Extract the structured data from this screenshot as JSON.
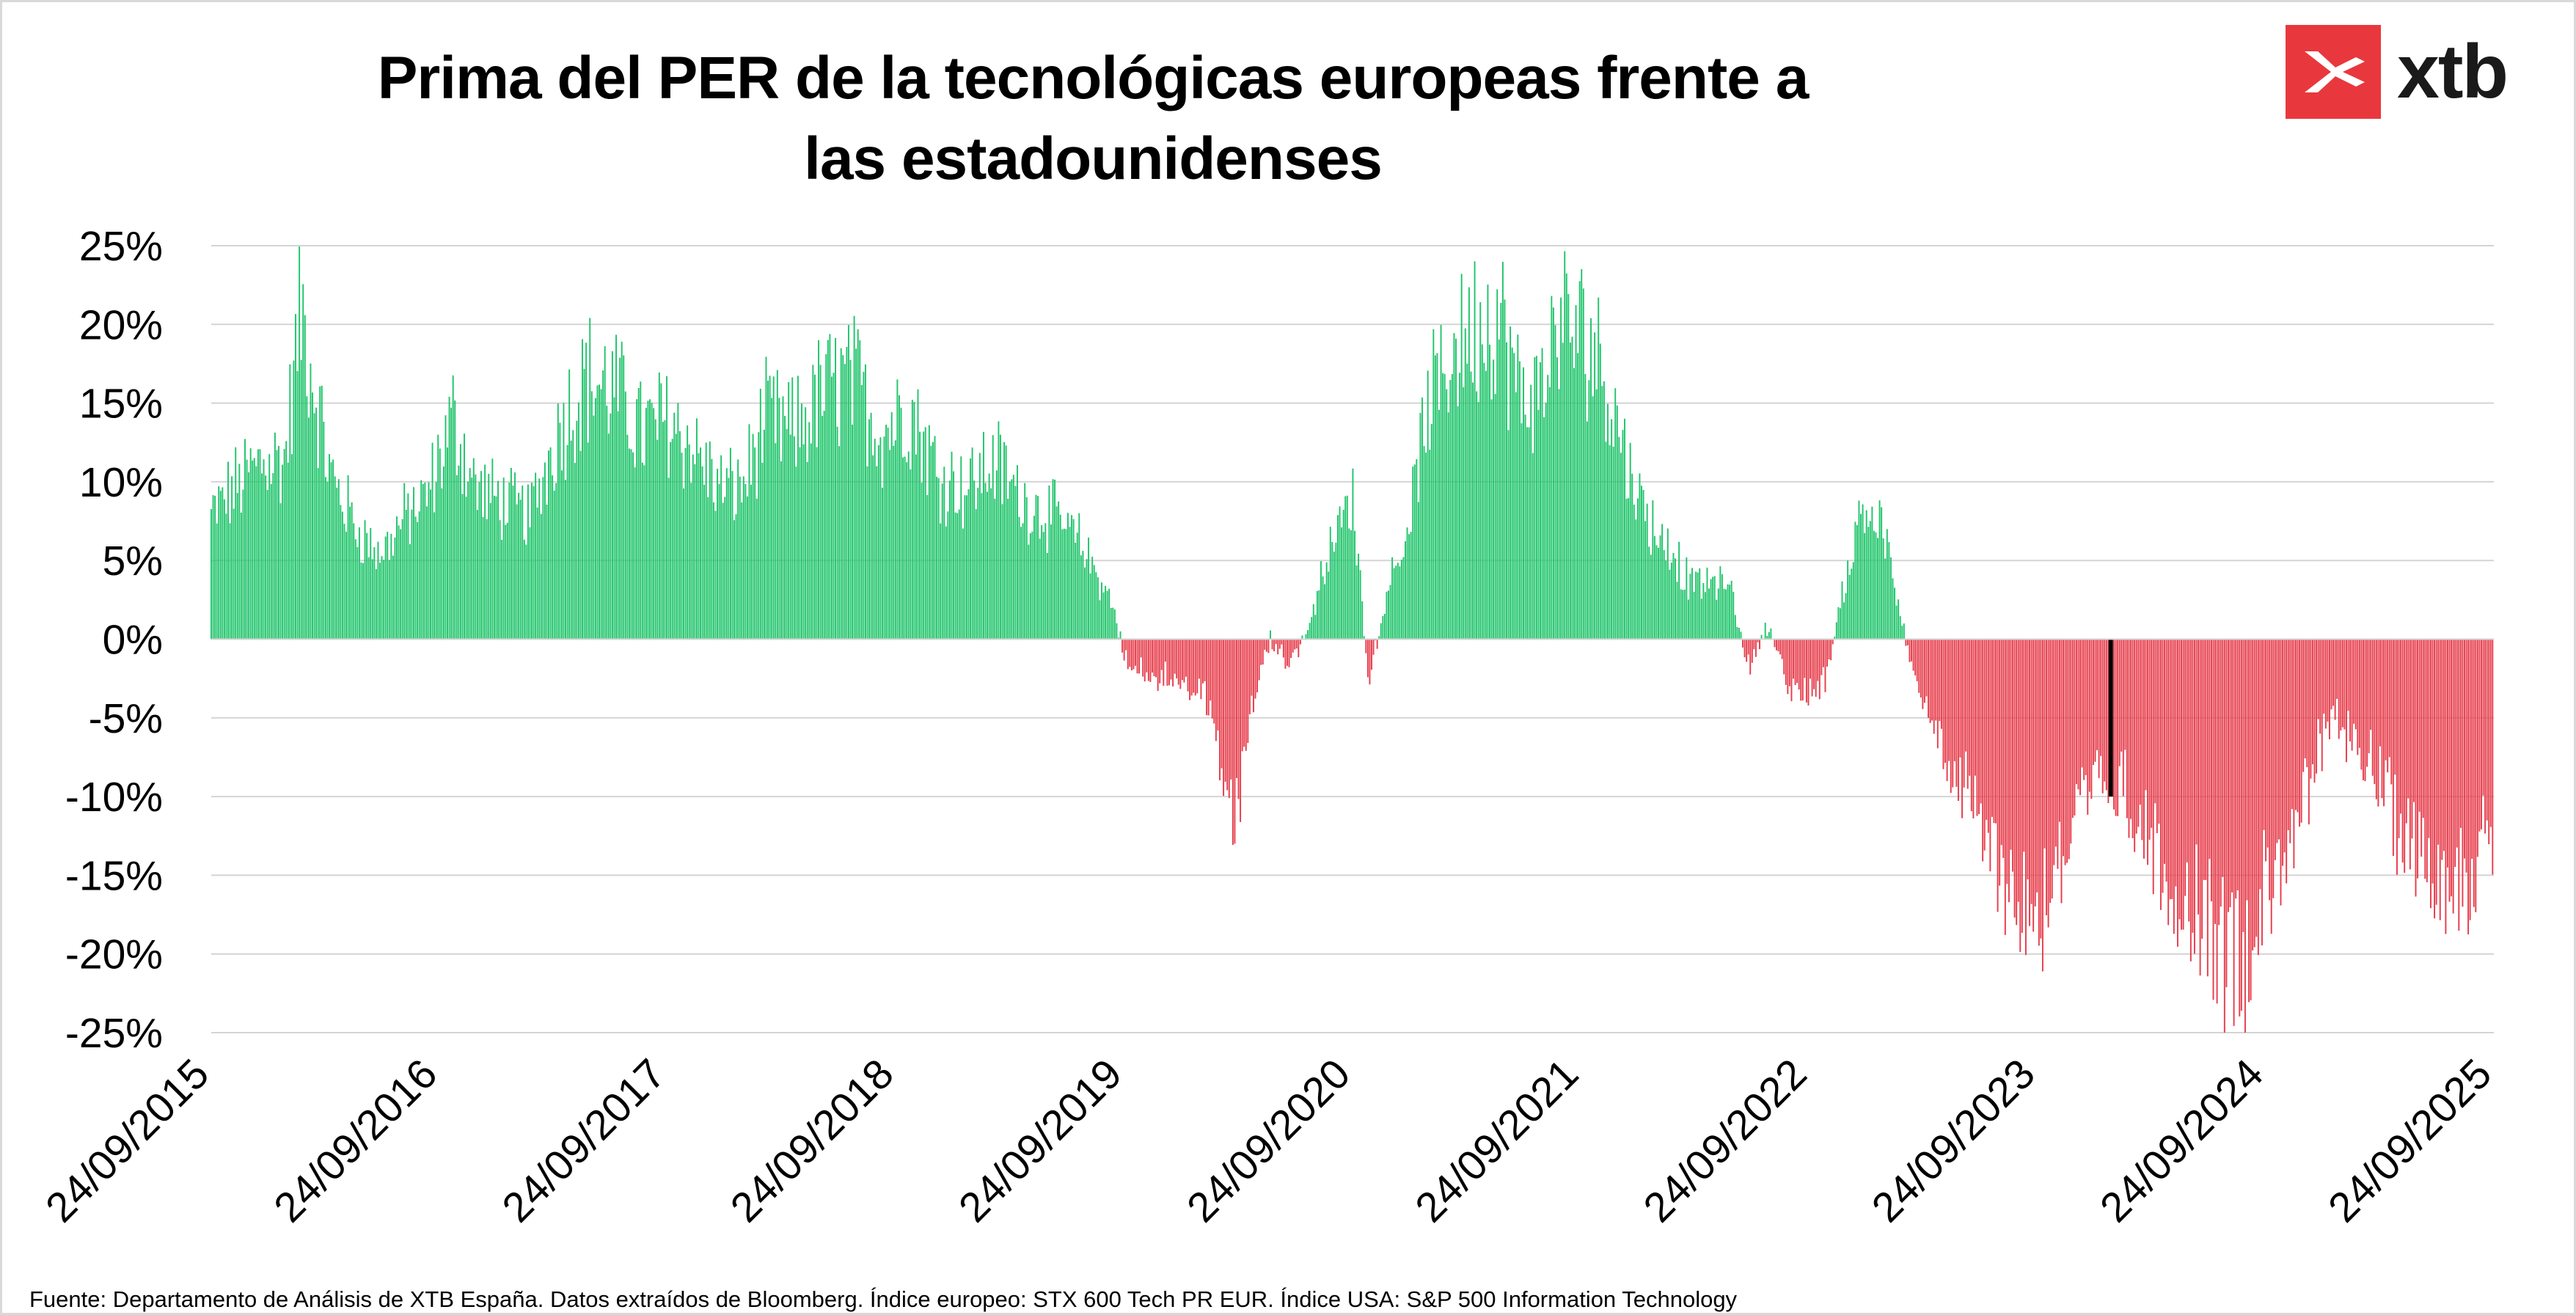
{
  "logo": {
    "text": "xtb",
    "icon": "xtb-x-icon",
    "color": "#e8383d"
  },
  "source_note": "Fuente: Departamento de Análisis de XTB España. Datos extraídos de Bloomberg. Índice europeo: STX 600 Tech PR EUR. Índice USA: S&P 500 Information Technology",
  "chart_data": {
    "type": "bar",
    "title": "Prima del PER de la tecnológicas europeas frente a las estadounidenses",
    "xlabel": "",
    "ylabel": "",
    "ylim": [
      -25,
      25
    ],
    "y_ticks": [
      25,
      20,
      15,
      10,
      5,
      0,
      -5,
      -10,
      -15,
      -20,
      -25
    ],
    "y_tick_labels": [
      "25%",
      "20%",
      "15%",
      "10%",
      "5%",
      "0%",
      "-5%",
      "-10%",
      "-15%",
      "-20%",
      "-25%"
    ],
    "x_tick_labels": [
      "24/09/2015",
      "24/09/2016",
      "24/09/2017",
      "24/09/2018",
      "24/09/2019",
      "24/09/2020",
      "24/09/2021",
      "24/09/2022",
      "24/09/2023",
      "24/09/2024",
      "24/09/2025"
    ],
    "x_start": "2015-09-24",
    "x_end": "2025-09-24",
    "grid": true,
    "legend": "none",
    "colors": {
      "positive": "#1fc46a",
      "negative": "#e63c4a",
      "highlight": "#000000"
    },
    "series": [
      {
        "values_note": "monthly anchor readings of the daily premium (%); intermediate bars interpolated",
        "x": [
          "2015-09-24",
          "2015-11-01",
          "2015-12-15",
          "2016-01-20",
          "2016-02-15",
          "2016-04-01",
          "2016-05-15",
          "2016-06-20",
          "2016-08-01",
          "2016-09-01",
          "2016-10-15",
          "2016-11-20",
          "2017-01-01",
          "2017-02-15",
          "2017-04-01",
          "2017-05-15",
          "2017-07-01",
          "2017-08-15",
          "2017-09-24",
          "2017-11-01",
          "2017-12-15",
          "2018-01-20",
          "2018-03-01",
          "2018-04-15",
          "2018-06-01",
          "2018-07-15",
          "2018-09-01",
          "2018-10-15",
          "2018-12-01",
          "2019-01-15",
          "2019-03-01",
          "2019-04-15",
          "2019-06-01",
          "2019-07-15",
          "2019-09-01",
          "2019-10-01",
          "2019-11-15",
          "2020-01-01",
          "2020-02-01",
          "2020-03-20",
          "2020-04-15",
          "2020-05-15",
          "2020-06-15",
          "2020-07-15",
          "2020-08-20",
          "2020-09-24",
          "2020-10-20",
          "2020-11-20",
          "2020-12-20",
          "2021-01-20",
          "2021-02-20",
          "2021-03-20",
          "2021-04-20",
          "2021-05-20",
          "2021-06-20",
          "2021-07-20",
          "2021-08-20",
          "2021-09-24",
          "2021-10-20",
          "2021-11-20",
          "2021-12-20",
          "2022-01-20",
          "2022-02-20",
          "2022-03-20",
          "2022-04-20",
          "2022-05-20",
          "2022-06-20",
          "2022-07-20",
          "2022-08-20",
          "2022-09-24",
          "2022-10-20",
          "2022-11-20",
          "2022-12-20",
          "2023-01-20",
          "2023-02-20",
          "2023-03-20",
          "2023-04-20",
          "2023-05-20",
          "2023-06-20",
          "2023-07-20",
          "2023-08-20",
          "2023-09-24",
          "2023-10-20",
          "2023-11-20",
          "2023-12-20",
          "2024-01-20",
          "2024-02-20",
          "2024-03-20",
          "2024-04-20",
          "2024-05-20",
          "2024-06-20",
          "2024-07-20",
          "2024-08-20",
          "2024-09-24",
          "2024-10-20",
          "2024-11-20",
          "2024-12-20",
          "2025-01-20",
          "2025-02-20",
          "2025-03-20",
          "2025-04-20",
          "2025-05-20",
          "2025-06-20",
          "2025-07-20",
          "2025-08-20",
          "2025-09-24"
        ],
        "values": [
          9,
          11,
          13,
          13,
          24,
          12,
          8,
          6,
          9,
          10,
          16,
          11,
          10,
          9,
          15,
          19,
          18,
          15,
          16,
          14,
          11,
          11,
          16,
          15,
          18,
          19,
          15,
          17,
          12,
          11,
          13,
          10,
          9,
          7,
          3,
          -2,
          -3,
          -3,
          -4,
          -14,
          -5,
          0,
          -2,
          1,
          7,
          10,
          -3,
          4,
          8,
          16,
          20,
          22,
          23,
          23,
          17,
          18,
          23,
          22,
          21,
          16,
          11,
          8,
          6,
          4,
          4,
          4,
          -2,
          1,
          -3,
          -4,
          -3,
          4,
          10,
          8,
          1,
          -4,
          -7,
          -10,
          -13,
          -16,
          -18,
          -20,
          -17,
          -14,
          -11,
          -10,
          -12,
          -14,
          -17,
          -19,
          -20,
          -23,
          -23,
          -18,
          -15,
          -13,
          -8,
          -6,
          -8,
          -10,
          -13,
          -15,
          -16,
          -17,
          -17,
          -15
        ]
      }
    ],
    "highlight": {
      "x": "2024-01-20",
      "value": -10
    }
  }
}
